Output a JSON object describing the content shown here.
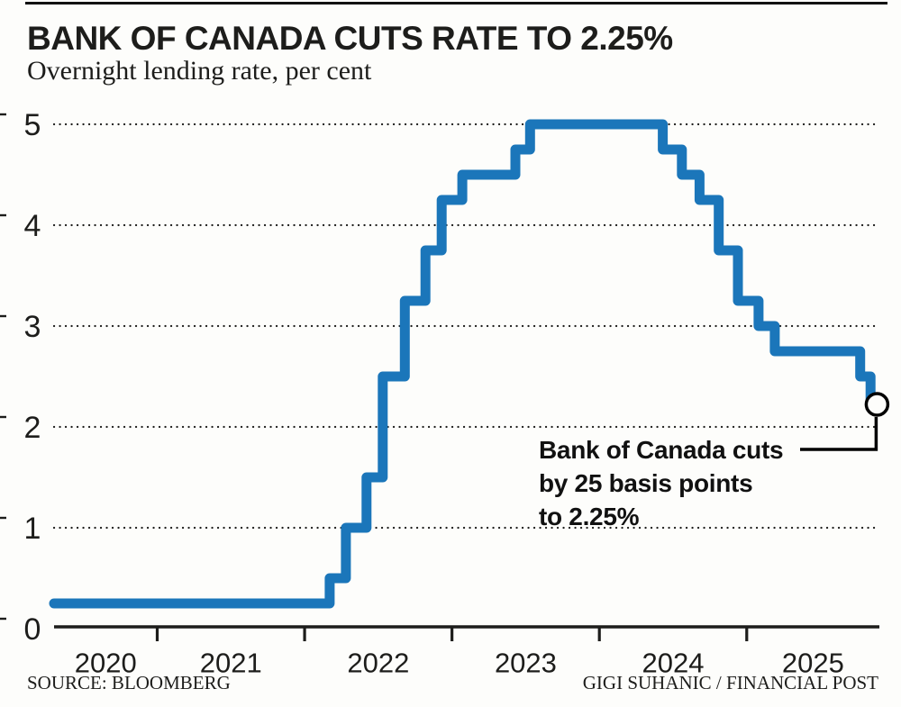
{
  "header": {
    "title": "BANK OF CANADA CUTS RATE TO 2.25%",
    "subtitle": "Overnight lending rate, per cent"
  },
  "annotation": {
    "lines": [
      "Bank of Canada cuts",
      "by 25 basis points",
      "to 2.25%"
    ]
  },
  "footer": {
    "source": "SOURCE: BLOOMBERG",
    "credit": "GIGI SUHANIC / FINANCIAL POST"
  },
  "chart_data": {
    "type": "line",
    "style": "step-after",
    "title": "BANK OF CANADA CUTS RATE TO 2.25%",
    "subtitle": "Overnight lending rate, per cent",
    "xlabel": "",
    "ylabel": "per cent",
    "xlim": [
      2020.3,
      2025.9
    ],
    "ylim": [
      0,
      5
    ],
    "grid": "horizontal-dotted",
    "legend": "none",
    "line_color": "#1b76ba",
    "y_ticks": [
      0,
      1,
      2,
      3,
      4,
      5
    ],
    "y_tick_labels": [
      "0",
      "1",
      "2",
      "3",
      "4",
      "5"
    ],
    "x_ticks": [
      2021,
      2022,
      2023,
      2024,
      2025
    ],
    "x_tick_labels": [
      "2020",
      "2021",
      "2022",
      "2023",
      "2024",
      "2025"
    ],
    "series": [
      {
        "name": "Overnight lending rate",
        "points": [
          [
            2020.3,
            0.25
          ],
          [
            2022.17,
            0.5
          ],
          [
            2022.28,
            1.0
          ],
          [
            2022.42,
            1.5
          ],
          [
            2022.53,
            2.5
          ],
          [
            2022.68,
            3.25
          ],
          [
            2022.82,
            3.75
          ],
          [
            2022.93,
            4.25
          ],
          [
            2023.07,
            4.5
          ],
          [
            2023.43,
            4.75
          ],
          [
            2023.53,
            5.0
          ],
          [
            2024.43,
            4.75
          ],
          [
            2024.56,
            4.5
          ],
          [
            2024.68,
            4.25
          ],
          [
            2024.81,
            3.75
          ],
          [
            2024.94,
            3.25
          ],
          [
            2025.08,
            3.0
          ],
          [
            2025.19,
            2.75
          ],
          [
            2025.77,
            2.5
          ],
          [
            2025.84,
            2.25
          ]
        ]
      }
    ],
    "line_end_x": 2025.89,
    "end_marker": {
      "x": 2025.89,
      "y": 2.25,
      "style": "open-circle"
    },
    "annotation_text": "Bank of Canada cuts by 25 basis points to 2.25%"
  }
}
